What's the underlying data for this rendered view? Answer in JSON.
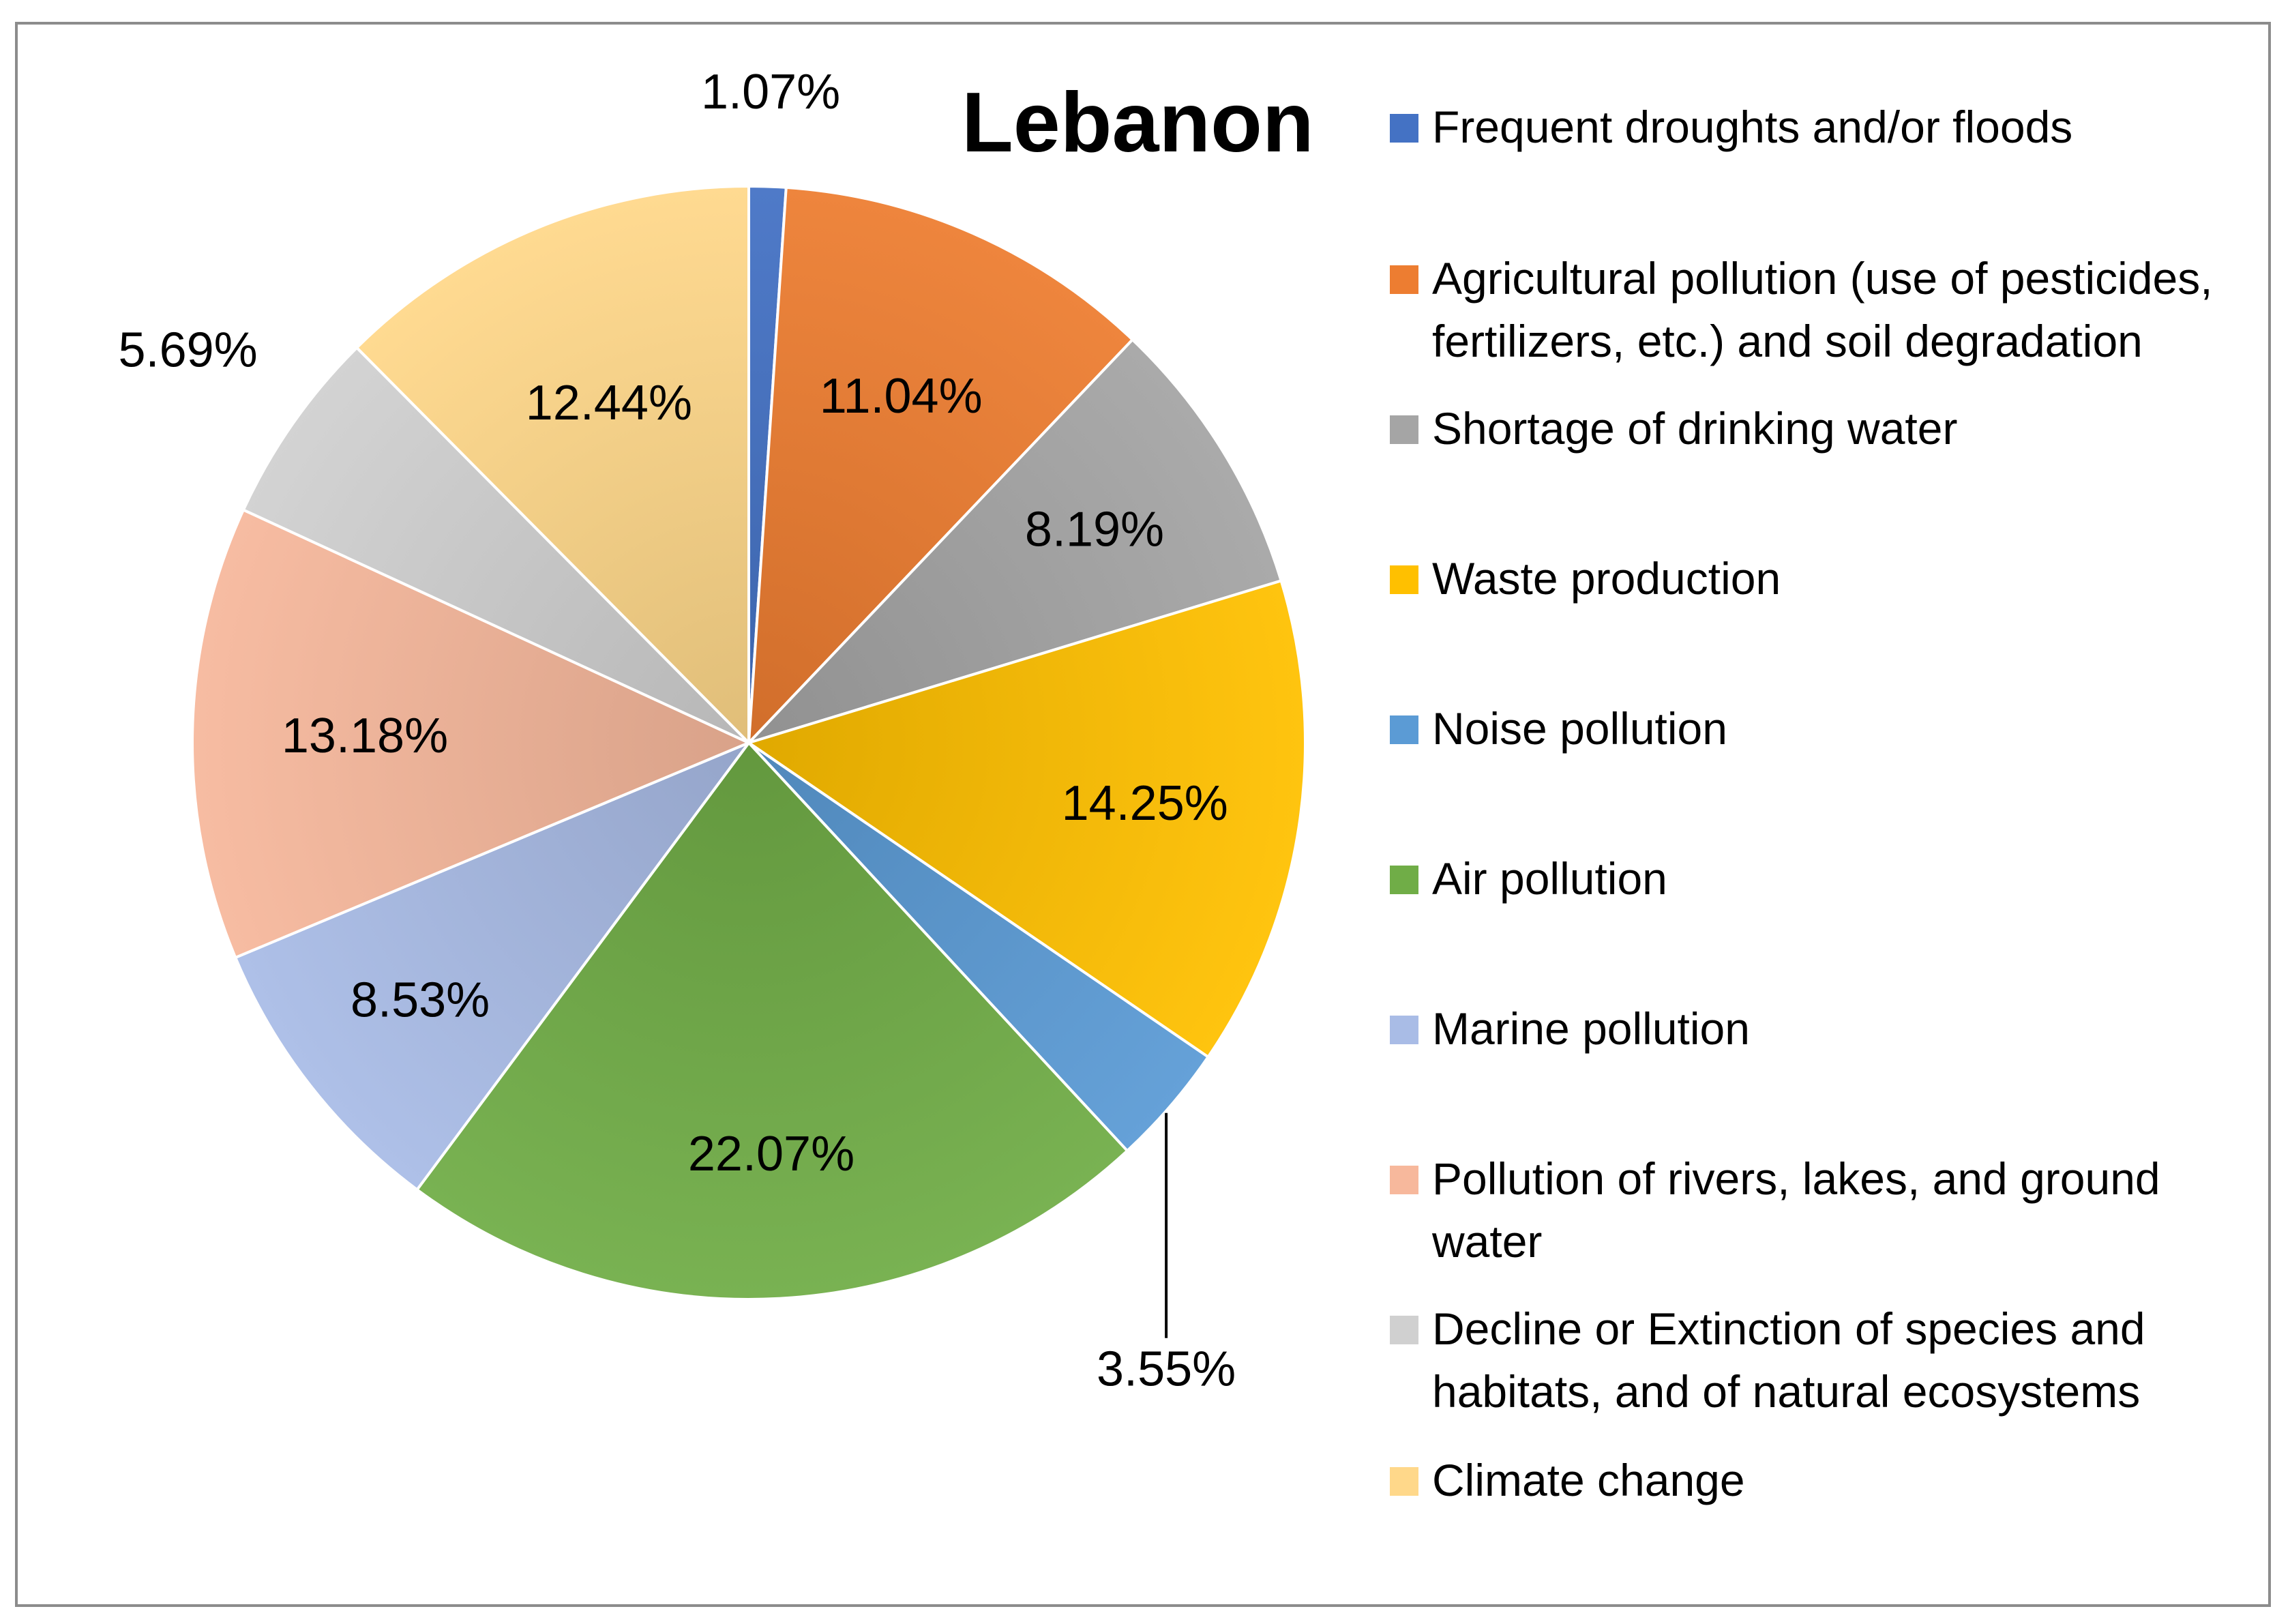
{
  "chart_data": {
    "type": "pie",
    "title": "Lebanon",
    "legend_position": "right",
    "slices": [
      {
        "name": "Frequent droughts and/or floods",
        "value": 1.07,
        "label": "1.07%",
        "color": "#4472c4"
      },
      {
        "name": "Agricultural pollution (use of pesticides, fertilizers, etc.) and soil degradation",
        "value": 11.04,
        "label": "11.04%",
        "color": "#ed7d31"
      },
      {
        "name": "Shortage of drinking water",
        "value": 8.19,
        "label": "8.19%",
        "color": "#a5a5a5"
      },
      {
        "name": "Waste production",
        "value": 14.25,
        "label": "14.25%",
        "color": "#ffc000"
      },
      {
        "name": "Noise pollution",
        "value": 3.55,
        "label": "3.55%",
        "color": "#5b9bd5"
      },
      {
        "name": "Air pollution",
        "value": 22.07,
        "label": "22.07%",
        "color": "#70ad47"
      },
      {
        "name": "Marine pollution",
        "value": 8.53,
        "label": "8.53%",
        "color": "#a9bce6"
      },
      {
        "name": "Pollution of rivers, lakes, and ground water",
        "value": 13.18,
        "label": "13.18%",
        "color": "#f7b89c"
      },
      {
        "name": "Decline or Extinction of species and habitats, and of natural ecosystems",
        "value": 5.69,
        "label": "5.69%",
        "color": "#d0d0d0"
      },
      {
        "name": "Climate change",
        "value": 12.44,
        "label": "12.44%",
        "color": "#ffd88a"
      }
    ]
  }
}
